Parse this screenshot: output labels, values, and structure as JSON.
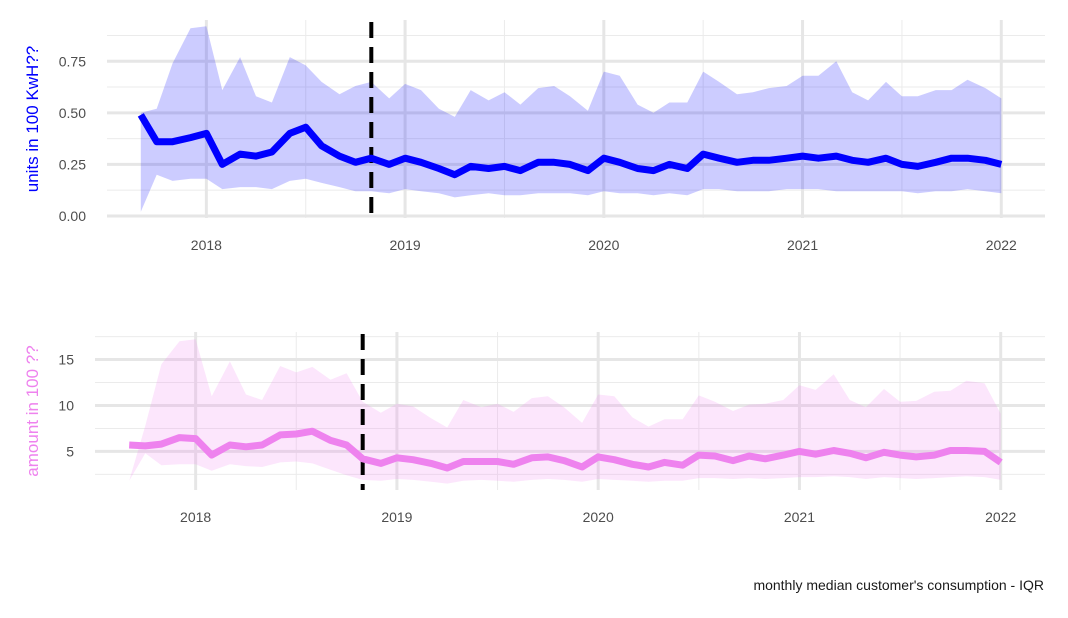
{
  "caption": "monthly median customer's consumption - IQR",
  "chart_data": [
    {
      "type": "line",
      "ylabel": "units in 100 KwH??",
      "ylim": [
        -0.01,
        0.95
      ],
      "xlim": [
        2017.5,
        2022.22
      ],
      "x_ticks": [
        2018,
        2019,
        2020,
        2021,
        2022
      ],
      "x_tick_labels": [
        "2018",
        "2019",
        "2020",
        "2021",
        "2022"
      ],
      "y_ticks": [
        0.0,
        0.25,
        0.5,
        0.75
      ],
      "y_tick_labels": [
        "0.00",
        "0.25",
        "0.50",
        "0.75"
      ],
      "vline": 2018.83,
      "colors": {
        "line": "#0000ff",
        "band": "#0000ff"
      },
      "grid": true,
      "series": [
        {
          "x": [
            2017.67,
            2017.75,
            2017.83,
            2017.92,
            2018.0,
            2018.08,
            2018.17,
            2018.25,
            2018.33,
            2018.42,
            2018.5,
            2018.58,
            2018.67,
            2018.75,
            2018.83,
            2018.92,
            2019.0,
            2019.08,
            2019.17,
            2019.25,
            2019.33,
            2019.42,
            2019.5,
            2019.58,
            2019.67,
            2019.75,
            2019.83,
            2019.92,
            2020.0,
            2020.08,
            2020.17,
            2020.25,
            2020.33,
            2020.42,
            2020.5,
            2020.58,
            2020.67,
            2020.75,
            2020.83,
            2020.92,
            2021.0,
            2021.08,
            2021.17,
            2021.25,
            2021.33,
            2021.42,
            2021.5,
            2021.58,
            2021.67,
            2021.75,
            2021.83,
            2021.92,
            2022.0
          ],
          "median": [
            0.49,
            0.36,
            0.36,
            0.38,
            0.4,
            0.25,
            0.3,
            0.29,
            0.31,
            0.4,
            0.43,
            0.34,
            0.29,
            0.26,
            0.28,
            0.25,
            0.28,
            0.26,
            0.23,
            0.2,
            0.24,
            0.23,
            0.24,
            0.22,
            0.26,
            0.26,
            0.25,
            0.22,
            0.28,
            0.26,
            0.23,
            0.22,
            0.25,
            0.23,
            0.3,
            0.28,
            0.26,
            0.27,
            0.27,
            0.28,
            0.29,
            0.28,
            0.29,
            0.27,
            0.26,
            0.28,
            0.25,
            0.24,
            0.26,
            0.28,
            0.28,
            0.27,
            0.25
          ],
          "q1": [
            0.02,
            0.2,
            0.17,
            0.18,
            0.18,
            0.13,
            0.14,
            0.14,
            0.13,
            0.17,
            0.18,
            0.16,
            0.14,
            0.12,
            0.12,
            0.11,
            0.13,
            0.12,
            0.11,
            0.09,
            0.1,
            0.11,
            0.1,
            0.1,
            0.11,
            0.11,
            0.11,
            0.1,
            0.12,
            0.11,
            0.11,
            0.1,
            0.11,
            0.1,
            0.13,
            0.13,
            0.12,
            0.12,
            0.12,
            0.13,
            0.13,
            0.13,
            0.12,
            0.12,
            0.12,
            0.12,
            0.12,
            0.11,
            0.12,
            0.12,
            0.13,
            0.12,
            0.11
          ],
          "q3": [
            0.5,
            0.52,
            0.74,
            0.91,
            0.92,
            0.61,
            0.77,
            0.58,
            0.55,
            0.77,
            0.73,
            0.65,
            0.59,
            0.63,
            0.65,
            0.57,
            0.64,
            0.61,
            0.52,
            0.48,
            0.61,
            0.56,
            0.6,
            0.54,
            0.62,
            0.63,
            0.58,
            0.51,
            0.7,
            0.68,
            0.54,
            0.5,
            0.55,
            0.55,
            0.7,
            0.65,
            0.59,
            0.6,
            0.62,
            0.63,
            0.68,
            0.68,
            0.75,
            0.6,
            0.56,
            0.65,
            0.58,
            0.58,
            0.61,
            0.61,
            0.66,
            0.62,
            0.57
          ]
        }
      ]
    },
    {
      "type": "line",
      "ylabel": "amount in 100 ??",
      "ylim": [
        0.8,
        18.0
      ],
      "xlim": [
        2017.5,
        2022.22
      ],
      "x_ticks": [
        2018,
        2019,
        2020,
        2021,
        2022
      ],
      "x_tick_labels": [
        "2018",
        "2019",
        "2020",
        "2021",
        "2022"
      ],
      "y_ticks": [
        5,
        10,
        15
      ],
      "y_tick_labels": [
        "5",
        "10",
        "15"
      ],
      "vline": 2018.83,
      "colors": {
        "line": "#ee82ee",
        "band": "#ee82ee"
      },
      "grid": true,
      "series": [
        {
          "x": [
            2017.67,
            2017.75,
            2017.83,
            2017.92,
            2018.0,
            2018.08,
            2018.17,
            2018.25,
            2018.33,
            2018.42,
            2018.5,
            2018.58,
            2018.67,
            2018.75,
            2018.83,
            2018.92,
            2019.0,
            2019.08,
            2019.17,
            2019.25,
            2019.33,
            2019.42,
            2019.5,
            2019.58,
            2019.67,
            2019.75,
            2019.83,
            2019.92,
            2020.0,
            2020.08,
            2020.17,
            2020.25,
            2020.33,
            2020.42,
            2020.5,
            2020.58,
            2020.67,
            2020.75,
            2020.83,
            2020.92,
            2021.0,
            2021.08,
            2021.17,
            2021.25,
            2021.33,
            2021.42,
            2021.5,
            2021.58,
            2021.67,
            2021.75,
            2021.83,
            2021.92,
            2022.0
          ],
          "median": [
            5.7,
            5.6,
            5.8,
            6.5,
            6.4,
            4.6,
            5.7,
            5.5,
            5.7,
            6.8,
            6.9,
            7.2,
            6.2,
            5.7,
            4.2,
            3.7,
            4.3,
            4.1,
            3.7,
            3.2,
            3.9,
            3.9,
            3.9,
            3.6,
            4.3,
            4.4,
            4.0,
            3.3,
            4.4,
            4.1,
            3.6,
            3.3,
            3.8,
            3.5,
            4.6,
            4.5,
            4.0,
            4.5,
            4.2,
            4.6,
            5.0,
            4.7,
            5.1,
            4.8,
            4.3,
            4.9,
            4.6,
            4.4,
            4.6,
            5.1,
            5.1,
            5.0,
            3.8
          ],
          "q1": [
            1.8,
            4.8,
            3.5,
            3.6,
            3.6,
            2.9,
            3.6,
            3.4,
            3.3,
            3.8,
            3.9,
            3.7,
            3.0,
            2.4,
            1.9,
            1.8,
            2.0,
            1.9,
            1.7,
            1.5,
            1.8,
            1.9,
            1.8,
            1.7,
            1.9,
            2.0,
            1.9,
            1.7,
            2.0,
            1.9,
            1.8,
            1.7,
            1.8,
            1.8,
            2.1,
            2.1,
            2.0,
            2.1,
            2.0,
            2.1,
            2.2,
            2.2,
            2.3,
            2.2,
            2.0,
            2.2,
            2.1,
            2.0,
            2.1,
            2.2,
            2.3,
            2.2,
            1.9
          ],
          "q3": [
            1.8,
            7.8,
            14.5,
            17.0,
            17.2,
            11.0,
            14.8,
            11.2,
            10.6,
            14.3,
            13.6,
            14.2,
            12.8,
            13.5,
            10.4,
            9.2,
            10.2,
            9.9,
            8.6,
            7.6,
            10.6,
            9.8,
            10.2,
            9.3,
            10.8,
            11.0,
            9.8,
            8.1,
            11.2,
            11.0,
            8.7,
            7.7,
            8.5,
            8.5,
            11.1,
            10.4,
            9.4,
            10.1,
            10.2,
            10.6,
            12.2,
            11.7,
            13.4,
            10.6,
            9.8,
            11.8,
            10.4,
            10.5,
            11.5,
            11.6,
            12.7,
            12.4,
            9.1
          ]
        }
      ]
    }
  ]
}
